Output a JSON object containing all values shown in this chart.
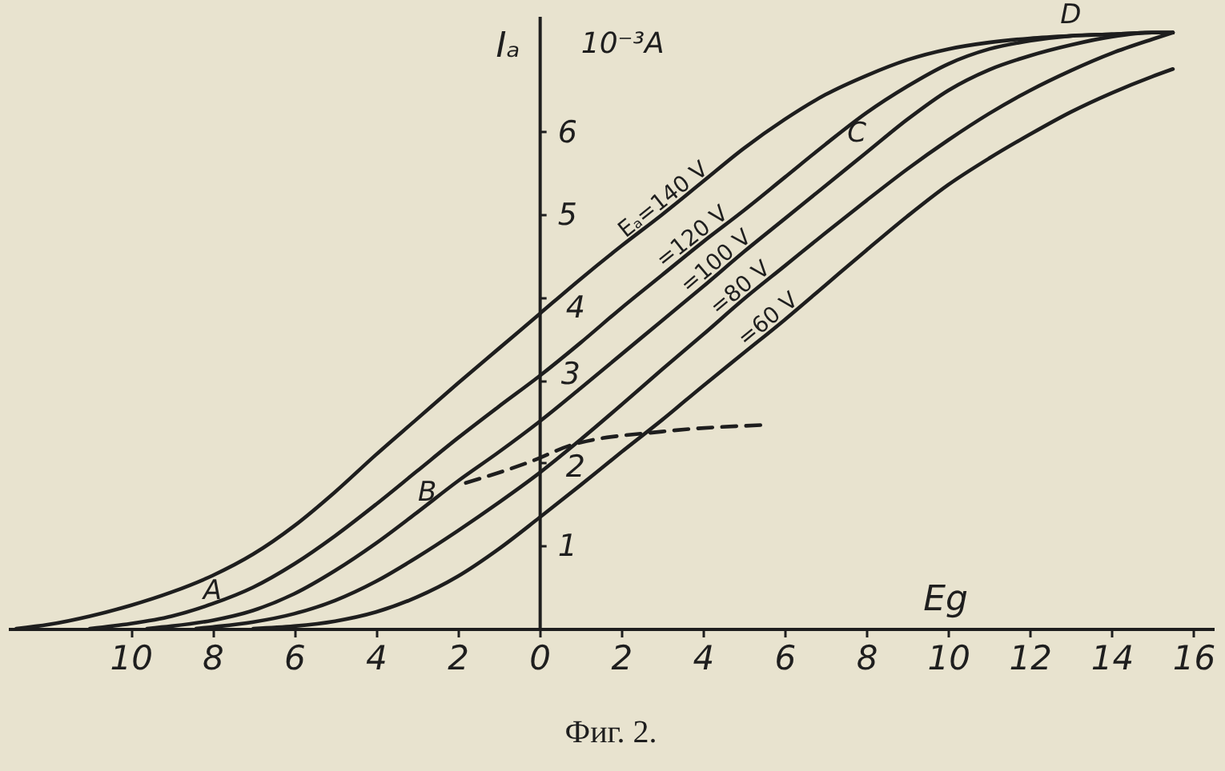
{
  "chart_data": {
    "type": "line",
    "title": "Фиг. 2.",
    "xlabel": "Eg",
    "ylabel": "Iₐ",
    "annotations": [
      "10⁻³A",
      {
        "text": "A",
        "x": -8,
        "y": 0.3
      },
      {
        "text": "B",
        "x": -1.8,
        "y": 1.76
      },
      {
        "text": "C",
        "x": 8,
        "y": 5.75
      },
      {
        "text": "D",
        "x": 13,
        "y": 7.16
      }
    ],
    "xlim": [
      -13,
      16.5
    ],
    "xticks": [
      {
        "value": -10,
        "label": "10"
      },
      {
        "value": -8,
        "label": "8"
      },
      {
        "value": -6,
        "label": "6"
      },
      {
        "value": -4,
        "label": "4"
      },
      {
        "value": -2,
        "label": "2"
      },
      0,
      2,
      4,
      6,
      8,
      10,
      12,
      14,
      16
    ],
    "ylim": [
      0,
      7.4
    ],
    "yticks": [
      1,
      2,
      3,
      4,
      5,
      6
    ],
    "grid": false,
    "line_style": "solid",
    "series": [
      {
        "name": "Eₐ=140 V",
        "color": "#1e1e1e",
        "x": [
          -12.8,
          -12,
          -11,
          -10,
          -9,
          -8,
          -7,
          -6,
          -5,
          -4,
          -3,
          -2,
          -1,
          0,
          1,
          2,
          3,
          4,
          5,
          6,
          7,
          8,
          9,
          10,
          11,
          12,
          13,
          14,
          15,
          15.5
        ],
        "values": [
          0,
          0.05,
          0.15,
          0.28,
          0.44,
          0.64,
          0.9,
          1.24,
          1.65,
          2.1,
          2.53,
          2.96,
          3.38,
          3.8,
          4.22,
          4.62,
          5.0,
          5.4,
          5.8,
          6.15,
          6.45,
          6.68,
          6.87,
          7.0,
          7.08,
          7.13,
          7.16,
          7.18,
          7.2,
          7.2
        ]
      },
      {
        "name": "=120 V",
        "color": "#1e1e1e",
        "x": [
          -11,
          -10,
          -9,
          -8,
          -7,
          -6,
          -5,
          -4,
          -3,
          -2,
          -1,
          0,
          1,
          2,
          3,
          4,
          5,
          6,
          7,
          8,
          9,
          10,
          11,
          12,
          13,
          14,
          15,
          15.5
        ],
        "values": [
          0,
          0.06,
          0.15,
          0.3,
          0.5,
          0.78,
          1.12,
          1.5,
          1.9,
          2.3,
          2.68,
          3.05,
          3.45,
          3.87,
          4.27,
          4.67,
          5.05,
          5.45,
          5.85,
          6.23,
          6.55,
          6.82,
          7.0,
          7.1,
          7.16,
          7.18,
          7.2,
          7.2
        ]
      },
      {
        "name": "=100 V",
        "color": "#1e1e1e",
        "x": [
          -9.6,
          -9,
          -8,
          -7,
          -6,
          -5,
          -4,
          -3,
          -2,
          -1,
          0,
          1,
          2,
          3,
          4,
          5,
          6,
          7,
          8,
          9,
          10,
          11,
          12,
          13,
          14,
          15,
          15.5
        ],
        "values": [
          0,
          0.03,
          0.1,
          0.22,
          0.42,
          0.7,
          1.03,
          1.4,
          1.78,
          2.13,
          2.5,
          2.9,
          3.31,
          3.72,
          4.13,
          4.55,
          4.95,
          5.35,
          5.75,
          6.15,
          6.5,
          6.75,
          6.92,
          7.05,
          7.15,
          7.2,
          7.2
        ]
      },
      {
        "name": "=80 V",
        "color": "#1e1e1e",
        "x": [
          -8.4,
          -8,
          -7,
          -6,
          -5,
          -4,
          -3,
          -2,
          -1,
          0,
          1,
          2,
          3,
          4,
          5,
          6,
          7,
          8,
          9,
          10,
          11,
          12,
          13,
          14,
          15,
          15.5
        ],
        "values": [
          0,
          0.02,
          0.08,
          0.18,
          0.34,
          0.57,
          0.86,
          1.18,
          1.52,
          1.88,
          2.28,
          2.7,
          3.13,
          3.55,
          3.98,
          4.38,
          4.78,
          5.17,
          5.55,
          5.9,
          6.22,
          6.5,
          6.74,
          6.95,
          7.12,
          7.2
        ]
      },
      {
        "name": "=60 V",
        "color": "#1e1e1e",
        "x": [
          -7,
          -6,
          -5,
          -4,
          -3,
          -2,
          -1,
          0,
          1,
          2,
          3,
          4,
          5,
          6,
          7,
          8,
          9,
          10,
          11,
          12,
          13,
          14,
          15,
          15.5
        ],
        "values": [
          0,
          0.03,
          0.09,
          0.2,
          0.38,
          0.63,
          0.96,
          1.34,
          1.73,
          2.13,
          2.52,
          2.93,
          3.33,
          3.73,
          4.15,
          4.57,
          4.98,
          5.36,
          5.68,
          5.97,
          6.24,
          6.47,
          6.67,
          6.76
        ]
      },
      {
        "type": "line",
        "color": "#1e1e1e",
        "line_style": "dashed",
        "x": [
          -1.8,
          -0.2,
          0.8,
          3,
          5.5
        ],
        "values": [
          1.76,
          2.02,
          2.22,
          2.38,
          2.46
        ]
      }
    ]
  }
}
